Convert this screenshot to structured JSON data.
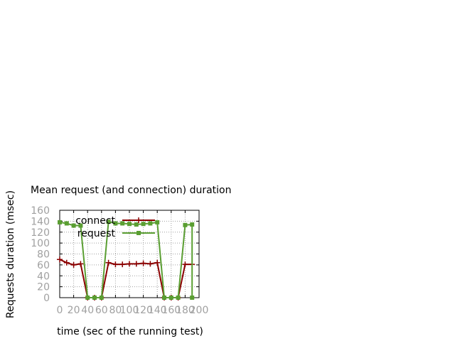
{
  "chart_data": {
    "type": "line",
    "title": "Mean request (and connection) duration",
    "xlabel": "time (sec of the running test)",
    "ylabel": "Requests duration (msec)",
    "xlim": [
      0,
      200
    ],
    "ylim": [
      0,
      160
    ],
    "x_ticks": [
      0,
      20,
      40,
      60,
      80,
      100,
      120,
      140,
      160,
      180,
      200
    ],
    "y_ticks": [
      0,
      20,
      40,
      60,
      80,
      100,
      120,
      140,
      160
    ],
    "grid": true,
    "legend_position": "top-left",
    "series": [
      {
        "name": "connect",
        "color": "#8b0000",
        "marker": "plus",
        "x": [
          0,
          10,
          20,
          30,
          40,
          50,
          60,
          70,
          80,
          90,
          100,
          110,
          120,
          130,
          140,
          150,
          160,
          170,
          180,
          190
        ],
        "y": [
          70,
          64,
          60,
          62,
          0,
          0,
          0,
          64,
          61,
          61,
          62,
          62,
          63,
          62,
          64,
          0,
          0,
          0,
          61,
          61
        ]
      },
      {
        "name": "request",
        "color": "#5a9e32",
        "marker": "square",
        "x": [
          0,
          10,
          20,
          30,
          40,
          50,
          60,
          70,
          80,
          90,
          100,
          110,
          120,
          130,
          140,
          150,
          160,
          170,
          180,
          190,
          190
        ],
        "y": [
          138,
          136,
          132,
          132,
          0,
          0,
          0,
          139,
          136,
          136,
          135,
          134,
          135,
          136,
          138,
          0,
          0,
          0,
          133,
          134,
          0
        ]
      }
    ]
  }
}
